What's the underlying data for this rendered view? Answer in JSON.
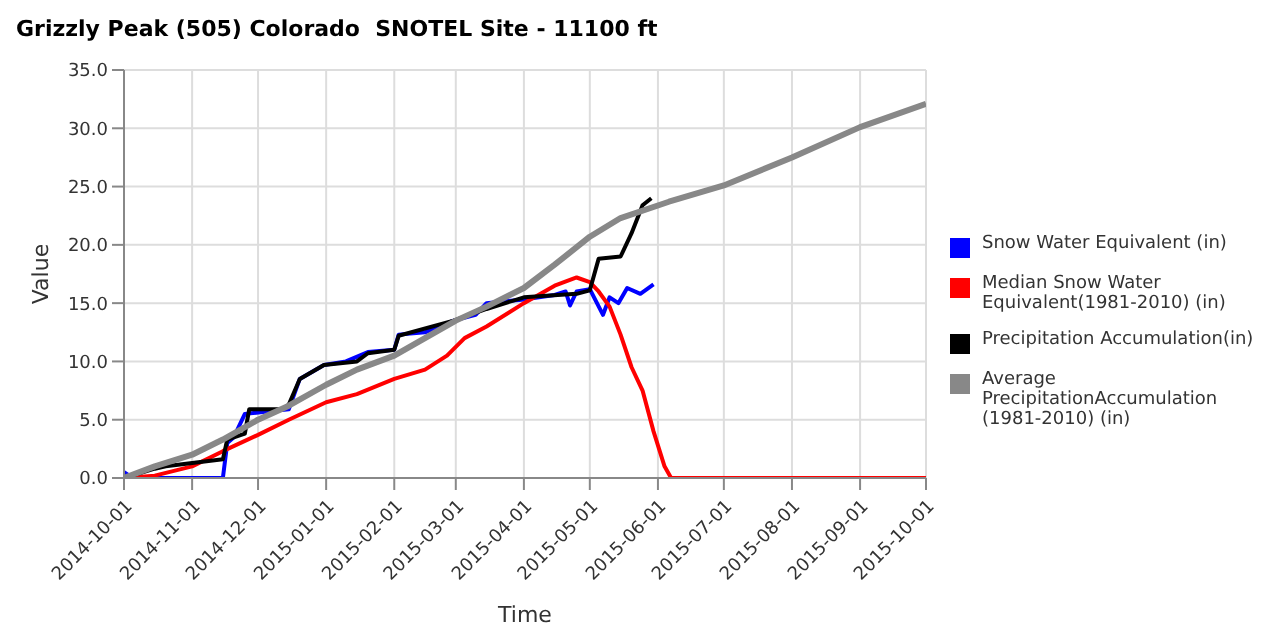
{
  "chart_data": {
    "type": "line",
    "title": "Grizzly Peak (505) Colorado  SNOTEL Site - 11100 ft",
    "xlabel": "Time",
    "ylabel": "Value",
    "xlim": [
      "2014-10-01",
      "2015-10-01"
    ],
    "xticks": [
      "2014-10-01",
      "2014-11-01",
      "2014-12-01",
      "2015-01-01",
      "2015-02-01",
      "2015-03-01",
      "2015-04-01",
      "2015-05-01",
      "2015-06-01",
      "2015-07-01",
      "2015-08-01",
      "2015-09-01",
      "2015-10-01"
    ],
    "ylim": [
      0,
      35
    ],
    "yticks": [
      {
        "value": 0,
        "label": "0.0"
      },
      {
        "value": 5,
        "label": "5.0"
      },
      {
        "value": 10,
        "label": "10.0"
      },
      {
        "value": 15,
        "label": "15.0"
      },
      {
        "value": 20,
        "label": "20.0"
      },
      {
        "value": 25,
        "label": "25.0"
      },
      {
        "value": 30,
        "label": "30.0"
      },
      {
        "value": 35,
        "label": "35.0"
      }
    ],
    "grid": true,
    "legend": "right",
    "marker": "none",
    "line_style": "solid",
    "series": [
      {
        "name": "Snow Water Equivalent (in)",
        "color": "#0000ff",
        "x": [
          "2014-10-01",
          "2014-10-05",
          "2014-11-15",
          "2014-11-17",
          "2014-11-20",
          "2014-11-25",
          "2014-12-15",
          "2014-12-20",
          "2014-12-31",
          "2015-01-10",
          "2015-01-20",
          "2015-02-01",
          "2015-02-03",
          "2015-02-15",
          "2015-02-28",
          "2015-03-10",
          "2015-03-15",
          "2015-03-31",
          "2015-04-15",
          "2015-04-20",
          "2015-04-22",
          "2015-04-25",
          "2015-05-01",
          "2015-05-07",
          "2015-05-10",
          "2015-05-14",
          "2015-05-18",
          "2015-05-24",
          "2015-05-30"
        ],
        "values": [
          0.5,
          0,
          0,
          3,
          3.5,
          5.5,
          5.9,
          8.5,
          9.7,
          10,
          10.8,
          11,
          12.3,
          12.5,
          13.5,
          14,
          15,
          15.3,
          15.7,
          16,
          14.8,
          16,
          16.2,
          14,
          15.5,
          15,
          16.3,
          15.8,
          16.6
        ]
      },
      {
        "name": "Median Snow Water Equivalent(1981-2010) (in)",
        "color": "#ff0000",
        "x": [
          "2014-10-01",
          "2014-10-15",
          "2014-11-01",
          "2014-11-15",
          "2014-12-01",
          "2014-12-15",
          "2015-01-01",
          "2015-01-15",
          "2015-02-01",
          "2015-02-15",
          "2015-02-25",
          "2015-03-05",
          "2015-03-15",
          "2015-04-01",
          "2015-04-15",
          "2015-04-25",
          "2015-05-01",
          "2015-05-05",
          "2015-05-10",
          "2015-05-15",
          "2015-05-20",
          "2015-05-25",
          "2015-05-30",
          "2015-06-04",
          "2015-06-07",
          "2015-10-01"
        ],
        "values": [
          0,
          0.2,
          1,
          2.3,
          3.7,
          5,
          6.5,
          7.2,
          8.5,
          9.3,
          10.5,
          12,
          13,
          15,
          16.5,
          17.2,
          16.8,
          16,
          14.7,
          12.3,
          9.5,
          7.5,
          4,
          1,
          0,
          0
        ]
      },
      {
        "name": "Precipitation Accumulation(in)",
        "color": "#000000",
        "x": [
          "2014-10-01",
          "2014-10-15",
          "2014-10-20",
          "2014-11-15",
          "2014-11-17",
          "2014-11-25",
          "2014-11-27",
          "2014-12-12",
          "2014-12-15",
          "2014-12-20",
          "2014-12-31",
          "2015-01-15",
          "2015-01-20",
          "2015-02-01",
          "2015-02-03",
          "2015-02-28",
          "2015-03-15",
          "2015-04-01",
          "2015-04-25",
          "2015-05-01",
          "2015-05-05",
          "2015-05-15",
          "2015-05-20",
          "2015-05-25",
          "2015-05-29"
        ],
        "values": [
          0,
          0.8,
          1,
          1.6,
          3.3,
          3.8,
          5.9,
          5.9,
          6.3,
          8.5,
          9.7,
          10,
          10.7,
          11,
          12.2,
          13.5,
          14.5,
          15.5,
          15.8,
          16.1,
          18.8,
          19,
          21,
          23.4,
          24
        ]
      },
      {
        "name": "Average PrecipitationAccumulation (1981-2010) (in)",
        "color": "#888888",
        "x": [
          "2014-10-01",
          "2014-10-15",
          "2014-11-01",
          "2014-11-15",
          "2014-12-01",
          "2014-12-15",
          "2015-01-01",
          "2015-01-15",
          "2015-02-01",
          "2015-02-15",
          "2015-03-01",
          "2015-03-15",
          "2015-04-01",
          "2015-04-15",
          "2015-05-01",
          "2015-05-15",
          "2015-06-06",
          "2015-07-01",
          "2015-08-01",
          "2015-09-01",
          "2015-10-01"
        ],
        "values": [
          0,
          1,
          2,
          3.3,
          5,
          6.2,
          8,
          9.3,
          10.5,
          12,
          13.5,
          14.7,
          16.3,
          18.3,
          20.7,
          22.3,
          23.7,
          25.1,
          27.5,
          30.1,
          32.1
        ]
      }
    ]
  }
}
